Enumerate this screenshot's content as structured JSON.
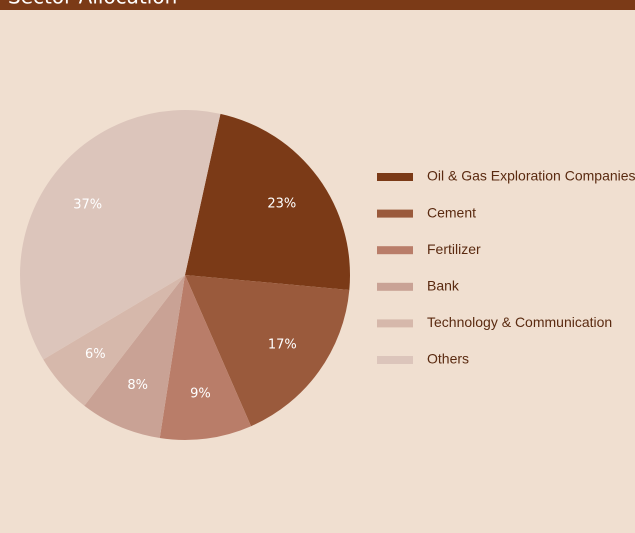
{
  "chart_data": {
    "type": "pie",
    "title": "Sector Allocation",
    "categories": [
      "Oil & Gas Exploration Companies",
      "Cement",
      "Fertilizer",
      "Bank",
      "Technology & Communication",
      "Others"
    ],
    "values": [
      23,
      17,
      9,
      8,
      6,
      37
    ],
    "value_labels": [
      "23%",
      "17%",
      "9%",
      "8%",
      "6%",
      "37%"
    ],
    "colors": [
      "#7b3a17",
      "#9a5a3c",
      "#b97d69",
      "#c9a295",
      "#d6b8ab",
      "#dcc5bb"
    ],
    "legend": "right"
  }
}
